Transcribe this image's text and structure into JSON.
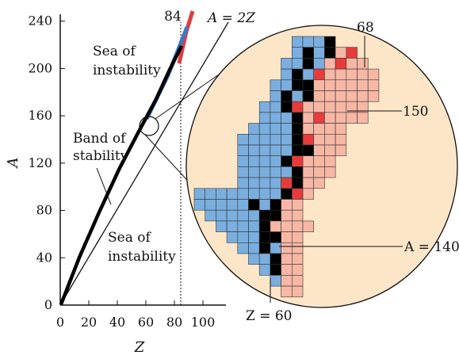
{
  "chart_data": {
    "type": "diagram",
    "xlabel": "Z",
    "ylabel": "A",
    "xlim": [
      0,
      110
    ],
    "ylim": [
      0,
      250
    ],
    "x_ticks": [
      0,
      20,
      40,
      60,
      80,
      100
    ],
    "y_ticks": [
      0,
      40,
      80,
      120,
      160,
      200,
      240
    ],
    "reference_line_label": "A = 2Z",
    "vertical_marker": {
      "label": "84",
      "z": 84
    },
    "regions": {
      "sea_upper": "Sea of instability",
      "band": "Band of stability",
      "sea_lower": "Sea of instability"
    },
    "inset_callouts": {
      "top": "68",
      "right": "150",
      "a140": "A = 140",
      "z60": "Z = 60"
    },
    "colors": {
      "stable_black": "#000000",
      "blue": "#7aaedf",
      "red": "#e83c3c",
      "salmon": "#f7b7a5",
      "inset_bg": "#fde6c8"
    }
  }
}
